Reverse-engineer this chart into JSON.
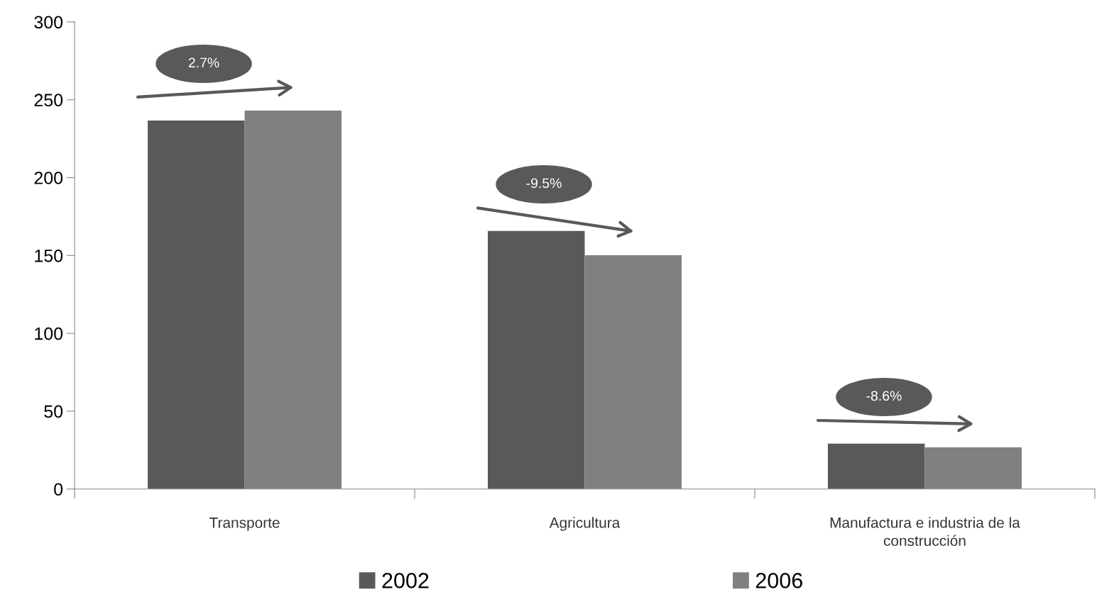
{
  "chart_data": {
    "type": "bar",
    "categories": [
      "Transporte",
      "Agricultura",
      "Manufactura e industria de la construcción"
    ],
    "series": [
      {
        "name": "2002",
        "color": "#595959",
        "values": [
          236.7,
          165.7,
          29.1
        ]
      },
      {
        "name": "2006",
        "color": "#808080",
        "values": [
          243.1,
          150.2,
          26.8
        ]
      }
    ],
    "ylim": [
      0,
      300
    ],
    "yticks": [
      0,
      50,
      100,
      150,
      200,
      250,
      300
    ],
    "grid": false,
    "legend": "bottom",
    "annotations": [
      "2.7%",
      "-9.5%",
      "-8.6%"
    ]
  }
}
